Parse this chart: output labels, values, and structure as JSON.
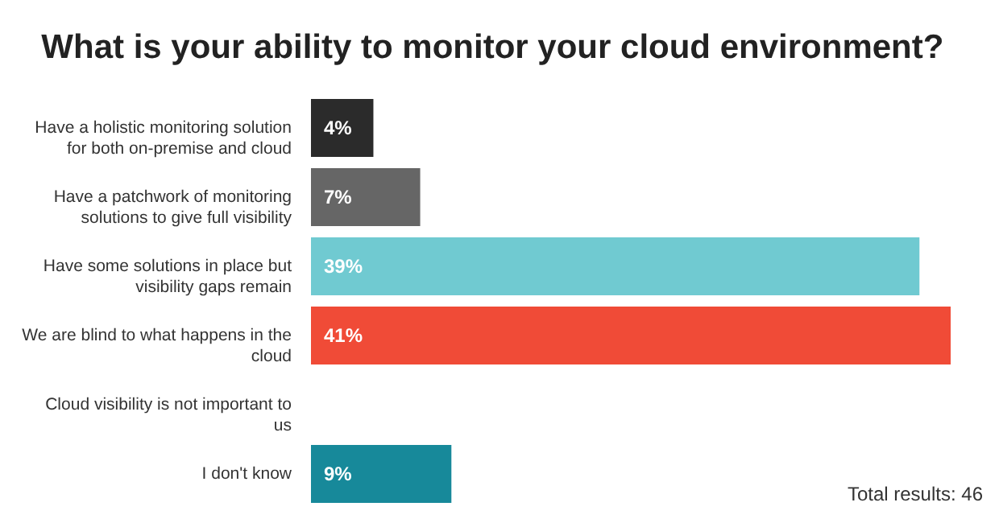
{
  "chart_data": {
    "type": "bar",
    "orientation": "horizontal",
    "title": "What is your ability to monitor your cloud environment?",
    "categories": [
      "Have a holistic monitoring solution for both on-premise and cloud",
      "Have a patchwork of monitoring solutions to give full visibility",
      "Have some solutions in place but visibility gaps remain",
      "We are blind to what happens in the cloud",
      "Cloud visibility is not important to us",
      "I don't know"
    ],
    "values": [
      4,
      7,
      39,
      41,
      0,
      9
    ],
    "colors": [
      "#2b2b2b",
      "#666666",
      "#70cad1",
      "#f04b37",
      "#cccccc",
      "#17899a"
    ],
    "value_labels": [
      "4%",
      "7%",
      "39%",
      "41%",
      null,
      "9%"
    ],
    "annotations": [
      "Total results: 46"
    ]
  }
}
